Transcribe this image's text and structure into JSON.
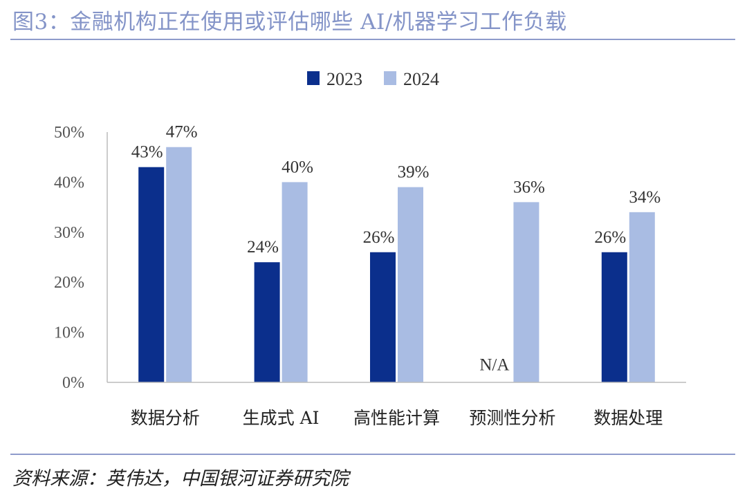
{
  "figure": {
    "title": "图3：金融机构正在使用或评估哪些 AI/机器学习工作负载",
    "source": "资料来源：英伟达，中国银河证券研究院"
  },
  "colors": {
    "s2023": "#0b2f8c",
    "s2024": "#a9bce3",
    "axis": "#bbbbbb",
    "rule": "#8e9bcb"
  },
  "chart_data": {
    "type": "bar",
    "title": "",
    "xlabel": "",
    "ylabel": "",
    "ylim": [
      0,
      50
    ],
    "yticks": [
      "0%",
      "10%",
      "20%",
      "30%",
      "40%",
      "50%"
    ],
    "categories": [
      "数据分析",
      "生成式 AI",
      "高性能计算",
      "预测性分析",
      "数据处理"
    ],
    "series": [
      {
        "name": "2023",
        "values": [
          43,
          24,
          26,
          null,
          26
        ],
        "labels": [
          "43%",
          "24%",
          "26%",
          "N/A",
          "26%"
        ]
      },
      {
        "name": "2024",
        "values": [
          47,
          40,
          39,
          36,
          34
        ],
        "labels": [
          "47%",
          "40%",
          "39%",
          "36%",
          "34%"
        ]
      }
    ],
    "legend": "top"
  }
}
